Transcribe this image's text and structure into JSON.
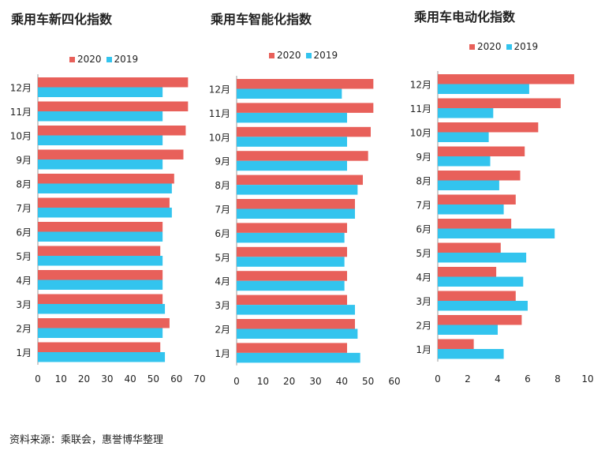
{
  "colors": {
    "s2020": "#E8605A",
    "s2019": "#33C4EE",
    "axis": "#9a9a9a"
  },
  "source": "资料来源：乘联会，惠誉博华整理",
  "chart_data": [
    {
      "type": "bar",
      "title": "乘用车新四化指数",
      "categories": [
        "1月",
        "2月",
        "3月",
        "4月",
        "5月",
        "6月",
        "7月",
        "8月",
        "9月",
        "10月",
        "11月",
        "12月"
      ],
      "series": [
        {
          "name": "2020",
          "values": [
            53,
            57,
            54,
            54,
            53,
            54,
            57,
            59,
            63,
            64,
            65,
            65
          ]
        },
        {
          "name": "2019",
          "values": [
            55,
            54,
            55,
            54,
            54,
            54,
            58,
            58,
            54,
            54,
            54,
            54
          ]
        }
      ],
      "xlim": [
        0,
        70
      ],
      "xticks": [
        "0",
        "10",
        "20",
        "30",
        "40",
        "50",
        "60",
        "70"
      ],
      "legend_position": "top"
    },
    {
      "type": "bar",
      "title": "乘用车智能化指数",
      "categories": [
        "1月",
        "2月",
        "3月",
        "4月",
        "5月",
        "6月",
        "7月",
        "8月",
        "9月",
        "10月",
        "11月",
        "12月"
      ],
      "series": [
        {
          "name": "2020",
          "values": [
            42,
            45,
            42,
            42,
            42,
            42,
            45,
            48,
            50,
            51,
            52,
            52
          ]
        },
        {
          "name": "2019",
          "values": [
            47,
            46,
            45,
            41,
            41,
            41,
            45,
            46,
            42,
            42,
            42,
            40
          ]
        }
      ],
      "xlim": [
        0,
        60
      ],
      "xticks": [
        "0",
        "10",
        "20",
        "30",
        "40",
        "50",
        "60"
      ],
      "legend_position": "top"
    },
    {
      "type": "bar",
      "title": "乘用车电动化指数",
      "categories": [
        "1月",
        "2月",
        "3月",
        "4月",
        "5月",
        "6月",
        "7月",
        "8月",
        "9月",
        "10月",
        "11月",
        "12月"
      ],
      "series": [
        {
          "name": "2020",
          "values": [
            2.4,
            5.6,
            5.2,
            3.9,
            4.2,
            4.9,
            5.2,
            5.5,
            5.8,
            6.7,
            8.2,
            9.1
          ]
        },
        {
          "name": "2019",
          "values": [
            4.4,
            4.0,
            6.0,
            5.7,
            5.9,
            7.8,
            4.4,
            4.1,
            3.5,
            3.4,
            3.7,
            6.1
          ]
        }
      ],
      "xlim": [
        0,
        10
      ],
      "xticks": [
        "0",
        "2",
        "4",
        "6",
        "8",
        "10"
      ],
      "legend_position": "top"
    }
  ]
}
